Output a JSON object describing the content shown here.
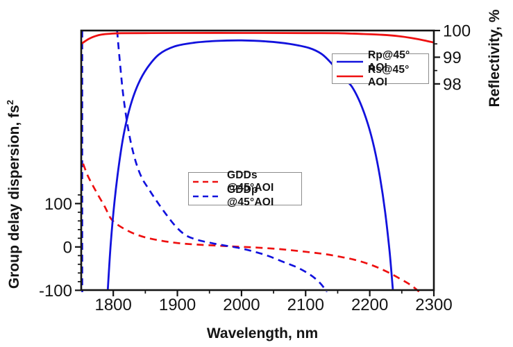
{
  "figure": {
    "background": "#ffffff",
    "frame_color": "#141414",
    "accent_blue": "#1212dd",
    "accent_red": "#ee1010"
  },
  "chart_data": {
    "type": "line",
    "title": "",
    "x_axis": {
      "label": "Wavelength, nm",
      "min": 1750,
      "max": 2300,
      "major_ticks": [
        1800,
        1900,
        2000,
        2100,
        2200,
        2300
      ],
      "minor_ticks": [
        1850,
        1950,
        2050,
        2150,
        2250
      ]
    },
    "y_left": {
      "label": "Group delay dispersion, fs",
      "label_sup": "2",
      "min": -99.5,
      "max": 499,
      "major_ticks": [
        100,
        0,
        -100
      ],
      "minor_ticks": [
        120,
        80,
        60,
        40,
        20,
        -20,
        -40,
        -60,
        -80
      ]
    },
    "y_right": {
      "label": "Reflectivity, %",
      "min": 90.27,
      "max": 100,
      "major_ticks": [
        100,
        99,
        98
      ],
      "minor_ticks": [
        99.5,
        98.5
      ]
    },
    "series": [
      {
        "name": "GDDp-edge-spike",
        "axis": "left",
        "color": "#1212dd",
        "dashed": true,
        "width": 2.6,
        "points": [
          [
            1751.6,
            499
          ],
          [
            1751.6,
            -106
          ]
        ]
      },
      {
        "name": "GDDs",
        "axis": "left",
        "color": "#ee1010",
        "dashed": true,
        "width": 2.7,
        "points": [
          [
            1753,
            192
          ],
          [
            1760,
            165
          ],
          [
            1768,
            142
          ],
          [
            1777,
            118
          ],
          [
            1787,
            92
          ],
          [
            1796,
            66
          ],
          [
            1806,
            52
          ],
          [
            1818,
            41
          ],
          [
            1832,
            31
          ],
          [
            1850,
            22
          ],
          [
            1872,
            15
          ],
          [
            1900,
            9
          ],
          [
            1930,
            5.5
          ],
          [
            1962,
            3
          ],
          [
            1995,
            0.5
          ],
          [
            2025,
            -1.5
          ],
          [
            2055,
            -4.5
          ],
          [
            2080,
            -8
          ],
          [
            2105,
            -12
          ],
          [
            2130,
            -16.5
          ],
          [
            2155,
            -23
          ],
          [
            2180,
            -31
          ],
          [
            2205,
            -43
          ],
          [
            2228,
            -58
          ],
          [
            2248,
            -74
          ],
          [
            2263,
            -87
          ],
          [
            2272,
            -97
          ],
          [
            2279,
            -106
          ]
        ]
      },
      {
        "name": "GDDp",
        "axis": "left",
        "color": "#1212dd",
        "dashed": true,
        "width": 2.7,
        "points": [
          [
            1806,
            499
          ],
          [
            1810,
            432
          ],
          [
            1815,
            357
          ],
          [
            1821,
            292
          ],
          [
            1828,
            237
          ],
          [
            1836,
            192
          ],
          [
            1845,
            158
          ],
          [
            1856,
            132
          ],
          [
            1868,
            105
          ],
          [
            1882,
            76
          ],
          [
            1897,
            48
          ],
          [
            1913,
            27
          ],
          [
            1932,
            16
          ],
          [
            1953,
            9
          ],
          [
            1975,
            3
          ],
          [
            1998,
            -3
          ],
          [
            2020,
            -11
          ],
          [
            2042,
            -21
          ],
          [
            2066,
            -35
          ],
          [
            2088,
            -48
          ],
          [
            2106,
            -63
          ],
          [
            2119,
            -78
          ],
          [
            2128,
            -93
          ],
          [
            2133,
            -106
          ]
        ]
      },
      {
        "name": "Rp",
        "axis": "right",
        "color": "#1212dd",
        "dashed": false,
        "width": 2.8,
        "points": [
          [
            1791.5,
            90.3
          ],
          [
            1796,
            92.0
          ],
          [
            1802,
            93.6
          ],
          [
            1809,
            95.0
          ],
          [
            1817,
            96.2
          ],
          [
            1827,
            97.2
          ],
          [
            1839,
            98.0
          ],
          [
            1853,
            98.6
          ],
          [
            1871,
            99.1
          ],
          [
            1895,
            99.4
          ],
          [
            1925,
            99.54
          ],
          [
            1960,
            99.61
          ],
          [
            2000,
            99.63
          ],
          [
            2040,
            99.59
          ],
          [
            2075,
            99.5
          ],
          [
            2105,
            99.35
          ],
          [
            2125,
            99.12
          ],
          [
            2141,
            98.75
          ],
          [
            2158,
            98.25
          ],
          [
            2172,
            97.9
          ],
          [
            2185,
            97.3
          ],
          [
            2197,
            96.5
          ],
          [
            2207,
            95.6
          ],
          [
            2216,
            94.5
          ],
          [
            2224,
            93.2
          ],
          [
            2231,
            91.7
          ],
          [
            2236,
            90.3
          ]
        ]
      },
      {
        "name": "Rs",
        "axis": "right",
        "color": "#ee1010",
        "dashed": false,
        "width": 2.8,
        "points": [
          [
            1750,
            99.5
          ],
          [
            1756,
            99.6
          ],
          [
            1763,
            99.7
          ],
          [
            1772,
            99.79
          ],
          [
            1782,
            99.85
          ],
          [
            1795,
            99.88
          ],
          [
            1812,
            99.9
          ],
          [
            1850,
            99.905
          ],
          [
            1900,
            99.91
          ],
          [
            2000,
            99.91
          ],
          [
            2100,
            99.905
          ],
          [
            2150,
            99.9
          ],
          [
            2190,
            99.87
          ],
          [
            2220,
            99.84
          ],
          [
            2245,
            99.79
          ],
          [
            2265,
            99.72
          ],
          [
            2285,
            99.63
          ],
          [
            2300,
            99.55
          ]
        ]
      }
    ]
  },
  "legends": {
    "reflectivity": {
      "items": [
        {
          "label": "Rp@45° AOI",
          "color": "#1212dd",
          "dashed": false
        },
        {
          "label": "Rs@45° AOI",
          "color": "#ee1010",
          "dashed": false
        }
      ]
    },
    "gdd": {
      "items": [
        {
          "label": "GDDs @45°AOI",
          "color": "#ee1010",
          "dashed": true
        },
        {
          "label": "GDDp @45°AOI",
          "color": "#1212dd",
          "dashed": true
        }
      ]
    }
  }
}
